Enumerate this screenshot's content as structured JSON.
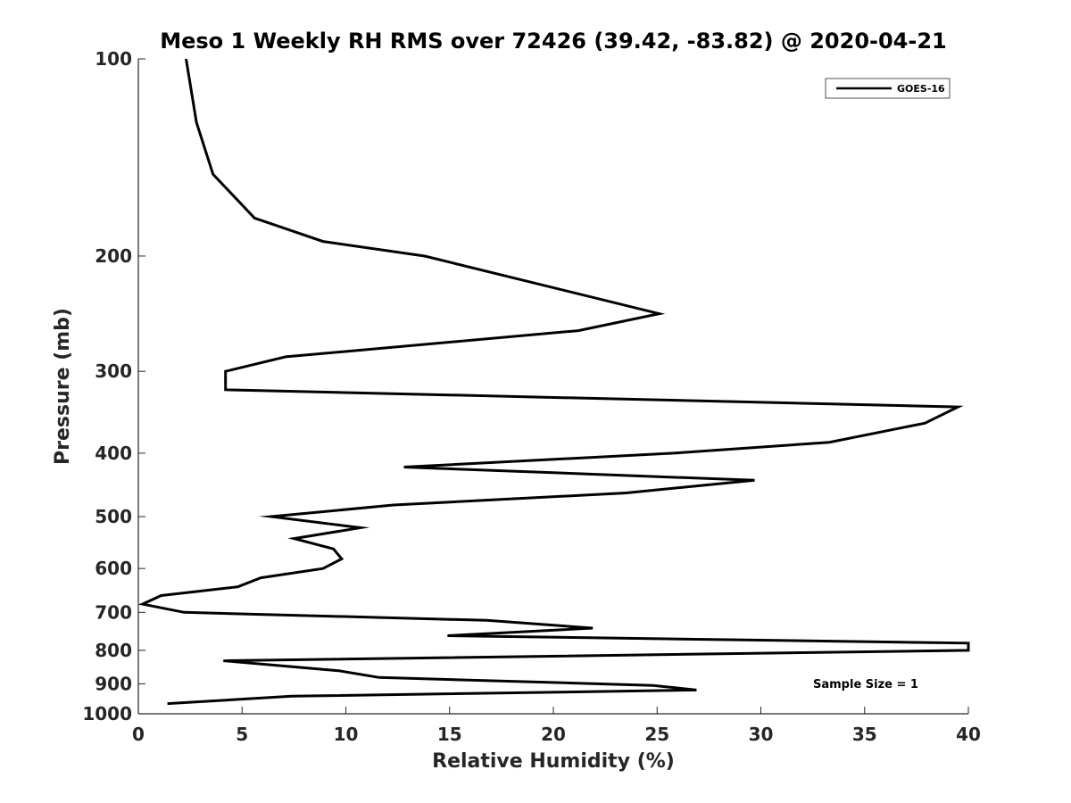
{
  "chart_data": {
    "type": "line",
    "title": "Meso 1 Weekly RH RMS over 72426 (39.42, -83.82) @ 2020-04-21",
    "xlabel": "Relative Humidity (%)",
    "ylabel": "Pressure (mb)",
    "xlim": [
      0,
      40
    ],
    "ylim": [
      100,
      1000
    ],
    "y_scale": "log",
    "y_reversed": true,
    "xticks": [
      0,
      5,
      10,
      15,
      20,
      25,
      30,
      35,
      40
    ],
    "yticks": [
      100,
      200,
      300,
      400,
      500,
      600,
      700,
      800,
      900,
      1000
    ],
    "grid": false,
    "legend_position": "top-right",
    "annotation": "Sample Size = 1",
    "series": [
      {
        "name": "GOES-16",
        "color": "#000000",
        "x": [
          2.3,
          2.8,
          3.6,
          5.6,
          8.9,
          13.8,
          25.1,
          21.2,
          7.1,
          4.2,
          4.2,
          39.5,
          37.9,
          33.3,
          25.8,
          12.8,
          29.7,
          23.5,
          12.3,
          6.4,
          10.7,
          7.5,
          9.4,
          9.8,
          8.9,
          5.9,
          4.8,
          1.1,
          0.2,
          2.2,
          16.8,
          21.9,
          14.9,
          40.0,
          40.0,
          4.1,
          9.7,
          11.6,
          24.8,
          26.9,
          7.4,
          1.4
        ],
        "y": [
          100,
          125,
          150,
          175,
          190,
          200,
          245,
          260,
          285,
          300,
          320,
          340,
          360,
          385,
          400,
          420,
          440,
          460,
          480,
          500,
          520,
          540,
          560,
          580,
          600,
          620,
          640,
          660,
          680,
          700,
          720,
          740,
          760,
          780,
          800,
          830,
          860,
          880,
          905,
          920,
          940,
          965
        ]
      }
    ]
  }
}
